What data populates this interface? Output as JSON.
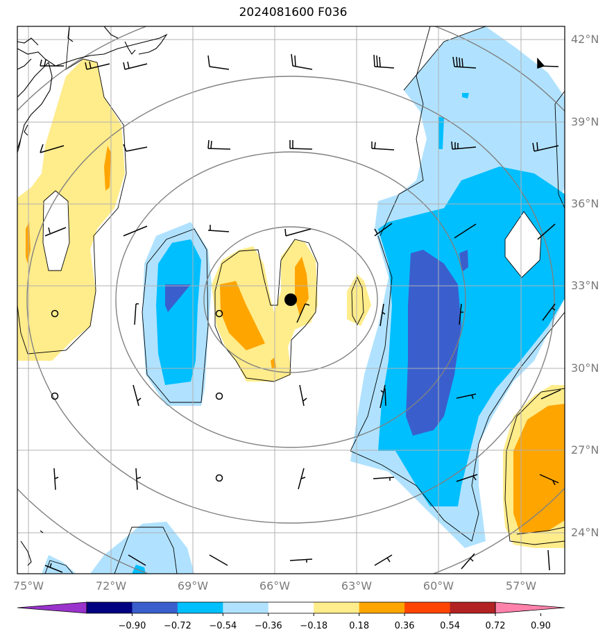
{
  "title": "2024081600 F036",
  "lat_labels": [
    "42°N",
    "39°N",
    "36°N",
    "33°N",
    "30°N",
    "27°N",
    "24°N"
  ],
  "lon_labels": [
    "75°W",
    "72°W",
    "69°W",
    "66°W",
    "63°W",
    "60°W",
    "57°W"
  ],
  "colorbar": {
    "ticks": [
      "−0.90",
      "−0.72",
      "−0.54",
      "−0.36",
      "−0.18",
      "0.18",
      "0.36",
      "0.54",
      "0.72",
      "0.90"
    ],
    "colors": [
      "#9933cc",
      "#000080",
      "#3a5fcd",
      "#00bfff",
      "#b0e2ff",
      "#ffffff",
      "#ffec8b",
      "#ffa500",
      "#ff4500",
      "#b22222",
      "#ff82ab"
    ]
  },
  "storm_center_marker": "filled-black-circle",
  "range_rings": 4,
  "icons": [
    "wind-barb",
    "calm-wind-circle",
    "storm-center-dot"
  ]
}
